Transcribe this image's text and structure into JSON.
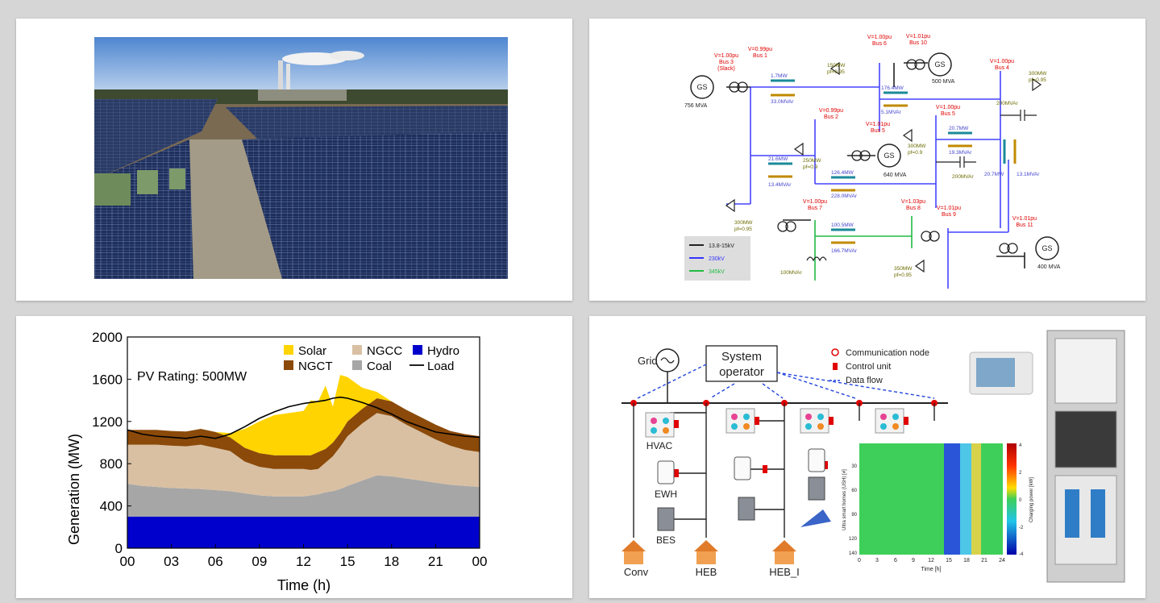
{
  "chart_data": {
    "type": "area",
    "xlabel": "Time (h)",
    "ylabel": "Generation (MW)",
    "annotation": "PV Rating: 500MW",
    "x_ticks": [
      "00",
      "03",
      "06",
      "09",
      "12",
      "15",
      "18",
      "21",
      "00"
    ],
    "y_ticks": [
      "0",
      "400",
      "800",
      "1200",
      "1600",
      "2000"
    ],
    "xlim": [
      0,
      24
    ],
    "ylim": [
      0,
      2000
    ],
    "legend_position": "top-right",
    "x": [
      0,
      1,
      2,
      3,
      4,
      5,
      6,
      7,
      8,
      9,
      10,
      11,
      12,
      12.5,
      13,
      13.5,
      14,
      14.5,
      15,
      16,
      17,
      18,
      19,
      20,
      21,
      22,
      23,
      24
    ],
    "series": [
      {
        "name": "Hydro",
        "color": "#0000cc",
        "values": [
          300,
          300,
          300,
          300,
          300,
          300,
          300,
          300,
          300,
          300,
          300,
          300,
          300,
          300,
          300,
          300,
          300,
          300,
          300,
          300,
          300,
          300,
          300,
          300,
          300,
          300,
          300,
          300
        ]
      },
      {
        "name": "Coal",
        "color": "#a6a6a6",
        "values": [
          310,
          290,
          280,
          270,
          265,
          260,
          250,
          240,
          220,
          200,
          190,
          190,
          190,
          200,
          210,
          230,
          240,
          260,
          290,
          340,
          390,
          380,
          360,
          340,
          320,
          300,
          290,
          280
        ]
      },
      {
        "name": "NGCC",
        "color": "#d9c0a3",
        "values": [
          370,
          390,
          400,
          400,
          400,
          420,
          400,
          380,
          300,
          270,
          260,
          260,
          260,
          240,
          240,
          280,
          330,
          400,
          470,
          540,
          590,
          570,
          510,
          460,
          410,
          370,
          340,
          330
        ]
      },
      {
        "name": "NGCT",
        "color": "#8b4a0a",
        "values": [
          140,
          140,
          140,
          140,
          140,
          150,
          150,
          130,
          130,
          130,
          130,
          130,
          130,
          140,
          160,
          130,
          130,
          130,
          140,
          140,
          140,
          140,
          140,
          140,
          140,
          140,
          150,
          150
        ]
      },
      {
        "name": "Solar",
        "color": "#ffd400",
        "values": [
          0,
          0,
          0,
          0,
          0,
          0,
          0,
          40,
          180,
          300,
          380,
          400,
          420,
          520,
          480,
          600,
          340,
          550,
          420,
          200,
          60,
          0,
          0,
          0,
          0,
          0,
          0,
          0
        ]
      }
    ],
    "load": {
      "name": "Load",
      "color": "#000000",
      "values": [
        1120,
        1080,
        1060,
        1050,
        1040,
        1060,
        1040,
        1080,
        1150,
        1230,
        1290,
        1340,
        1370,
        1380,
        1390,
        1400,
        1420,
        1430,
        1420,
        1380,
        1330,
        1270,
        1200,
        1150,
        1100,
        1080,
        1060,
        1050
      ]
    },
    "legend_order": [
      "Solar",
      "NGCC",
      "Hydro",
      "NGCT",
      "Coal",
      "Load"
    ]
  },
  "grid_diagram": {
    "buses": [
      {
        "v": "V=1.00pu",
        "name": "Bus 3",
        "extra": "(Slack)"
      },
      {
        "v": "V=0.99pu",
        "name": "Bus 1",
        "extra": ""
      },
      {
        "v": "V=1.00pu",
        "name": "Bus 6",
        "extra": ""
      },
      {
        "v": "V=1.01pu",
        "name": "Bus 10",
        "extra": ""
      },
      {
        "v": "V=1.00pu",
        "name": "Bus 4",
        "extra": ""
      },
      {
        "v": "V=0.99pu",
        "name": "Bus 2",
        "extra": ""
      },
      {
        "v": "V=1.01pu",
        "name": "Bus 5",
        "extra": ""
      },
      {
        "v": "V=1.00pu",
        "name": "Bus 5",
        "extra": ""
      },
      {
        "v": "V=1.00pu",
        "name": "Bus 7",
        "extra": ""
      },
      {
        "v": "V=1.03pu",
        "name": "Bus 8",
        "extra": ""
      },
      {
        "v": "V=1.01pu",
        "name": "Bus 9",
        "extra": ""
      },
      {
        "v": "V=1.01pu",
        "name": "Bus 11",
        "extra": ""
      }
    ],
    "generators": [
      "756 MVA",
      "500 MVA",
      "640 MVA",
      "400 MVA"
    ],
    "gen_label": "GS",
    "flows": [
      "1.7MW",
      "33.0MVAr",
      "176.4MW",
      "5.1MVAr",
      "20.7MW",
      "19.3MVAr",
      "21.6MW",
      "13.4MVAr",
      "126.4MW",
      "228.0MVAr",
      "100.5MW",
      "166.7MVAr",
      "20.7MW",
      "13.1MVAr"
    ],
    "loads": [
      "150MW",
      "pf=0.95",
      "300MW",
      "pf=0.95",
      "250MW",
      "pf=0.9",
      "300MW",
      "pf=0.9",
      "300MW",
      "pf=0.95",
      "350MW",
      "pf=0.95"
    ],
    "shunts": [
      "200MVAr",
      "200MVAr",
      "100MVAr"
    ],
    "legend": [
      {
        "label": "13.8-15kV",
        "color": "#222222"
      },
      {
        "label": "230kV",
        "color": "#3333ff"
      },
      {
        "label": "345kV",
        "color": "#22bb44"
      }
    ]
  },
  "home_diagram": {
    "grid_label": "Grid",
    "operator_label_1": "System",
    "operator_label_2": "operator",
    "legend": [
      "Communication node",
      "Control unit",
      "Data flow"
    ],
    "devices": [
      "HVAC",
      "EWH",
      "BES"
    ],
    "homes": [
      "Conv",
      "HEB",
      "HEB_I"
    ],
    "heatmap_ylabel": "Ultra smart homes (USH) [#]",
    "heatmap_xlabel": "Time [h]",
    "heatmap_cbar_label": "Charging power [kW]",
    "heatmap_xticks": [
      "0",
      "3",
      "6",
      "9",
      "12",
      "15",
      "18",
      "21",
      "24"
    ],
    "heatmap_yticks": [
      "30",
      "60",
      "90",
      "120",
      "140"
    ],
    "cbar_ticks": [
      "4",
      "2",
      "0",
      "-2",
      "-4"
    ]
  }
}
